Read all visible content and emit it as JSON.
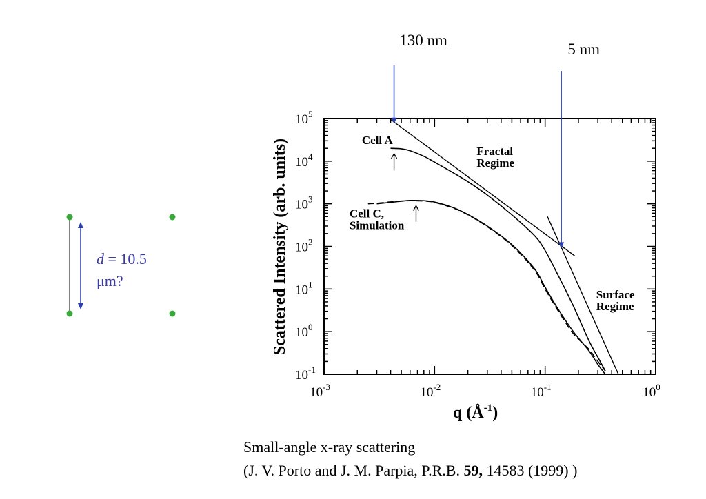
{
  "colors": {
    "annotation_blue": "#2b3fb0",
    "diagram_blue": "#3a3aa8",
    "handle_green": "#3aa83a",
    "ink": "#000000"
  },
  "diagram": {
    "label_d": "d",
    "label_eq": " = 10.5",
    "label_unit": "μm?"
  },
  "chart_data": {
    "type": "line",
    "x_scale": "log",
    "y_scale": "log",
    "xlim": [
      0.001,
      1
    ],
    "ylim": [
      0.1,
      100000
    ],
    "xlabel_main": "q (",
    "xlabel_unit": "Å",
    "xlabel_exp": "-1",
    "xlabel_close": ")",
    "ylabel": "Scattered Intensity (arb. units)",
    "x_ticks": [
      {
        "base": "10",
        "exp": "-3",
        "value": 0.001
      },
      {
        "base": "10",
        "exp": "-2",
        "value": 0.01
      },
      {
        "base": "10",
        "exp": "-1",
        "value": 0.1
      },
      {
        "base": "10",
        "exp": "0",
        "value": 1
      }
    ],
    "y_ticks": [
      {
        "base": "10",
        "exp": "5",
        "value": 100000
      },
      {
        "base": "10",
        "exp": "4",
        "value": 10000
      },
      {
        "base": "10",
        "exp": "3",
        "value": 1000
      },
      {
        "base": "10",
        "exp": "2",
        "value": 100
      },
      {
        "base": "10",
        "exp": "1",
        "value": 10
      },
      {
        "base": "10",
        "exp": "0",
        "value": 1
      },
      {
        "base": "10",
        "exp": "-1",
        "value": 0.1
      }
    ],
    "series": [
      {
        "name": "Cell A",
        "style": "solid",
        "x": [
          0.004,
          0.005,
          0.006,
          0.008,
          0.01,
          0.015,
          0.02,
          0.03,
          0.05,
          0.08,
          0.1,
          0.13,
          0.18,
          0.25,
          0.3,
          0.35
        ],
        "y": [
          20000,
          19500,
          17500,
          13000,
          9500,
          5200,
          3300,
          1600,
          550,
          180,
          80,
          22,
          4,
          0.6,
          0.25,
          0.12
        ]
      },
      {
        "name": "Cell C",
        "style": "solid",
        "x": [
          0.003,
          0.004,
          0.005,
          0.006,
          0.008,
          0.01,
          0.015,
          0.02,
          0.03,
          0.05,
          0.08,
          0.1,
          0.13,
          0.18,
          0.25,
          0.3,
          0.35
        ],
        "y": [
          1000,
          1080,
          1150,
          1200,
          1180,
          1100,
          800,
          560,
          300,
          110,
          30,
          11,
          3.5,
          1,
          0.35,
          0.17,
          0.1
        ]
      },
      {
        "name": "Simulation",
        "style": "dashed",
        "x": [
          0.0025,
          0.003,
          0.004,
          0.005,
          0.006,
          0.008,
          0.01,
          0.015,
          0.02,
          0.03,
          0.05,
          0.08,
          0.1,
          0.13,
          0.18,
          0.25,
          0.3,
          0.35
        ],
        "y": [
          1000,
          1030,
          1110,
          1160,
          1180,
          1160,
          1080,
          780,
          550,
          290,
          105,
          28,
          10,
          3.2,
          0.9,
          0.38,
          0.2,
          0.12
        ]
      }
    ],
    "fit_lines": [
      {
        "x": [
          0.0039,
          0.185
        ],
        "y": [
          100000,
          60
        ]
      },
      {
        "x": [
          0.105,
          0.46
        ],
        "y": [
          500,
          0.1
        ]
      }
    ],
    "text_labels": [
      {
        "id": "cell-a",
        "text": [
          "Cell A"
        ],
        "x": 0.0022,
        "y": 25000
      },
      {
        "id": "fractal",
        "text": [
          "Fractal",
          "Regime"
        ],
        "x": 0.024,
        "y": 14000
      },
      {
        "id": "cell-c",
        "text": [
          "Cell C,",
          "Simulation"
        ],
        "x": 0.0017,
        "y": 480
      },
      {
        "id": "surface",
        "text": [
          "Surface",
          "Regime"
        ],
        "x": 0.29,
        "y": 6
      },
      {
        "id": "label-130nm",
        "text": [
          "130 nm"
        ],
        "x": 0.0048,
        "y": 5200000
      },
      {
        "id": "label-5nm",
        "text": [
          "5 nm"
        ],
        "x": 0.16,
        "y": 3200000
      }
    ],
    "small_arrows": [
      {
        "x": 0.0043,
        "y_tip": 15000,
        "y_tail": 6000
      },
      {
        "x": 0.0068,
        "y_tip": 900,
        "y_tail": 380
      }
    ],
    "blue_arrows": [
      {
        "id": "130nm",
        "x": 0.0043,
        "y_tail": 1800000,
        "y_tip": 75000
      },
      {
        "id": "5nm",
        "x": 0.14,
        "y_tail": 1300000,
        "y_tip": 90
      }
    ]
  },
  "caption": {
    "line1": "Small-angle x-ray scattering",
    "line2_pre": "(J. V. Porto and J. M. Parpia, P.R.B. ",
    "line2_bold": "59,",
    "line2_post": " 14583 (1999) )"
  }
}
